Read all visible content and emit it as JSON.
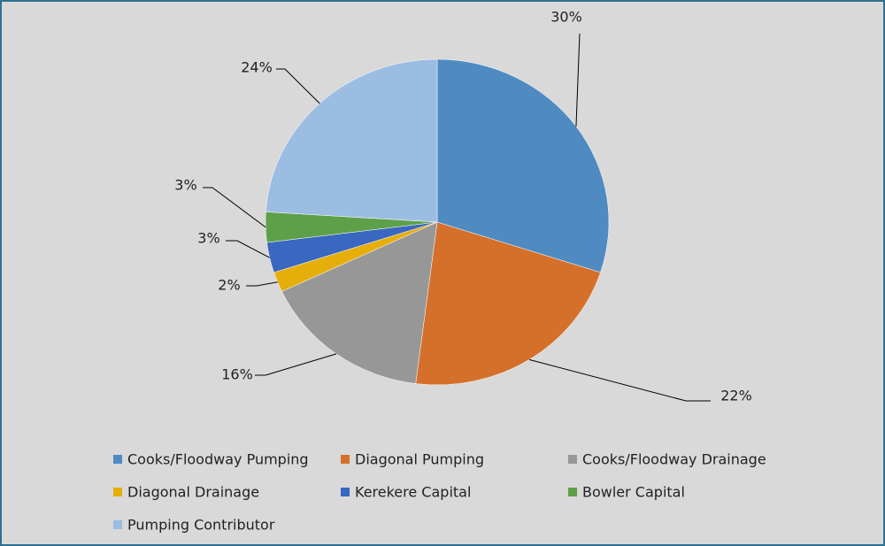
{
  "chart_data": {
    "type": "pie",
    "categories": [
      "Cooks/Floodway Pumping",
      "Diagonal Pumping",
      "Cooks/Floodway Drainage",
      "Diagonal Drainage",
      "Kerekere Capital",
      "Bowler Capital",
      "Pumping Contributor"
    ],
    "values": [
      30,
      22,
      16,
      2,
      3,
      3,
      24
    ],
    "value_labels": [
      "30%",
      "22%",
      "16%",
      "2%",
      "3%",
      "3%",
      "24%"
    ],
    "colors": [
      "#4f8bc1",
      "#d5702b",
      "#979797",
      "#e6ae0a",
      "#3a67c0",
      "#5ea04a",
      "#9bbde2"
    ],
    "legend": "bottom"
  }
}
